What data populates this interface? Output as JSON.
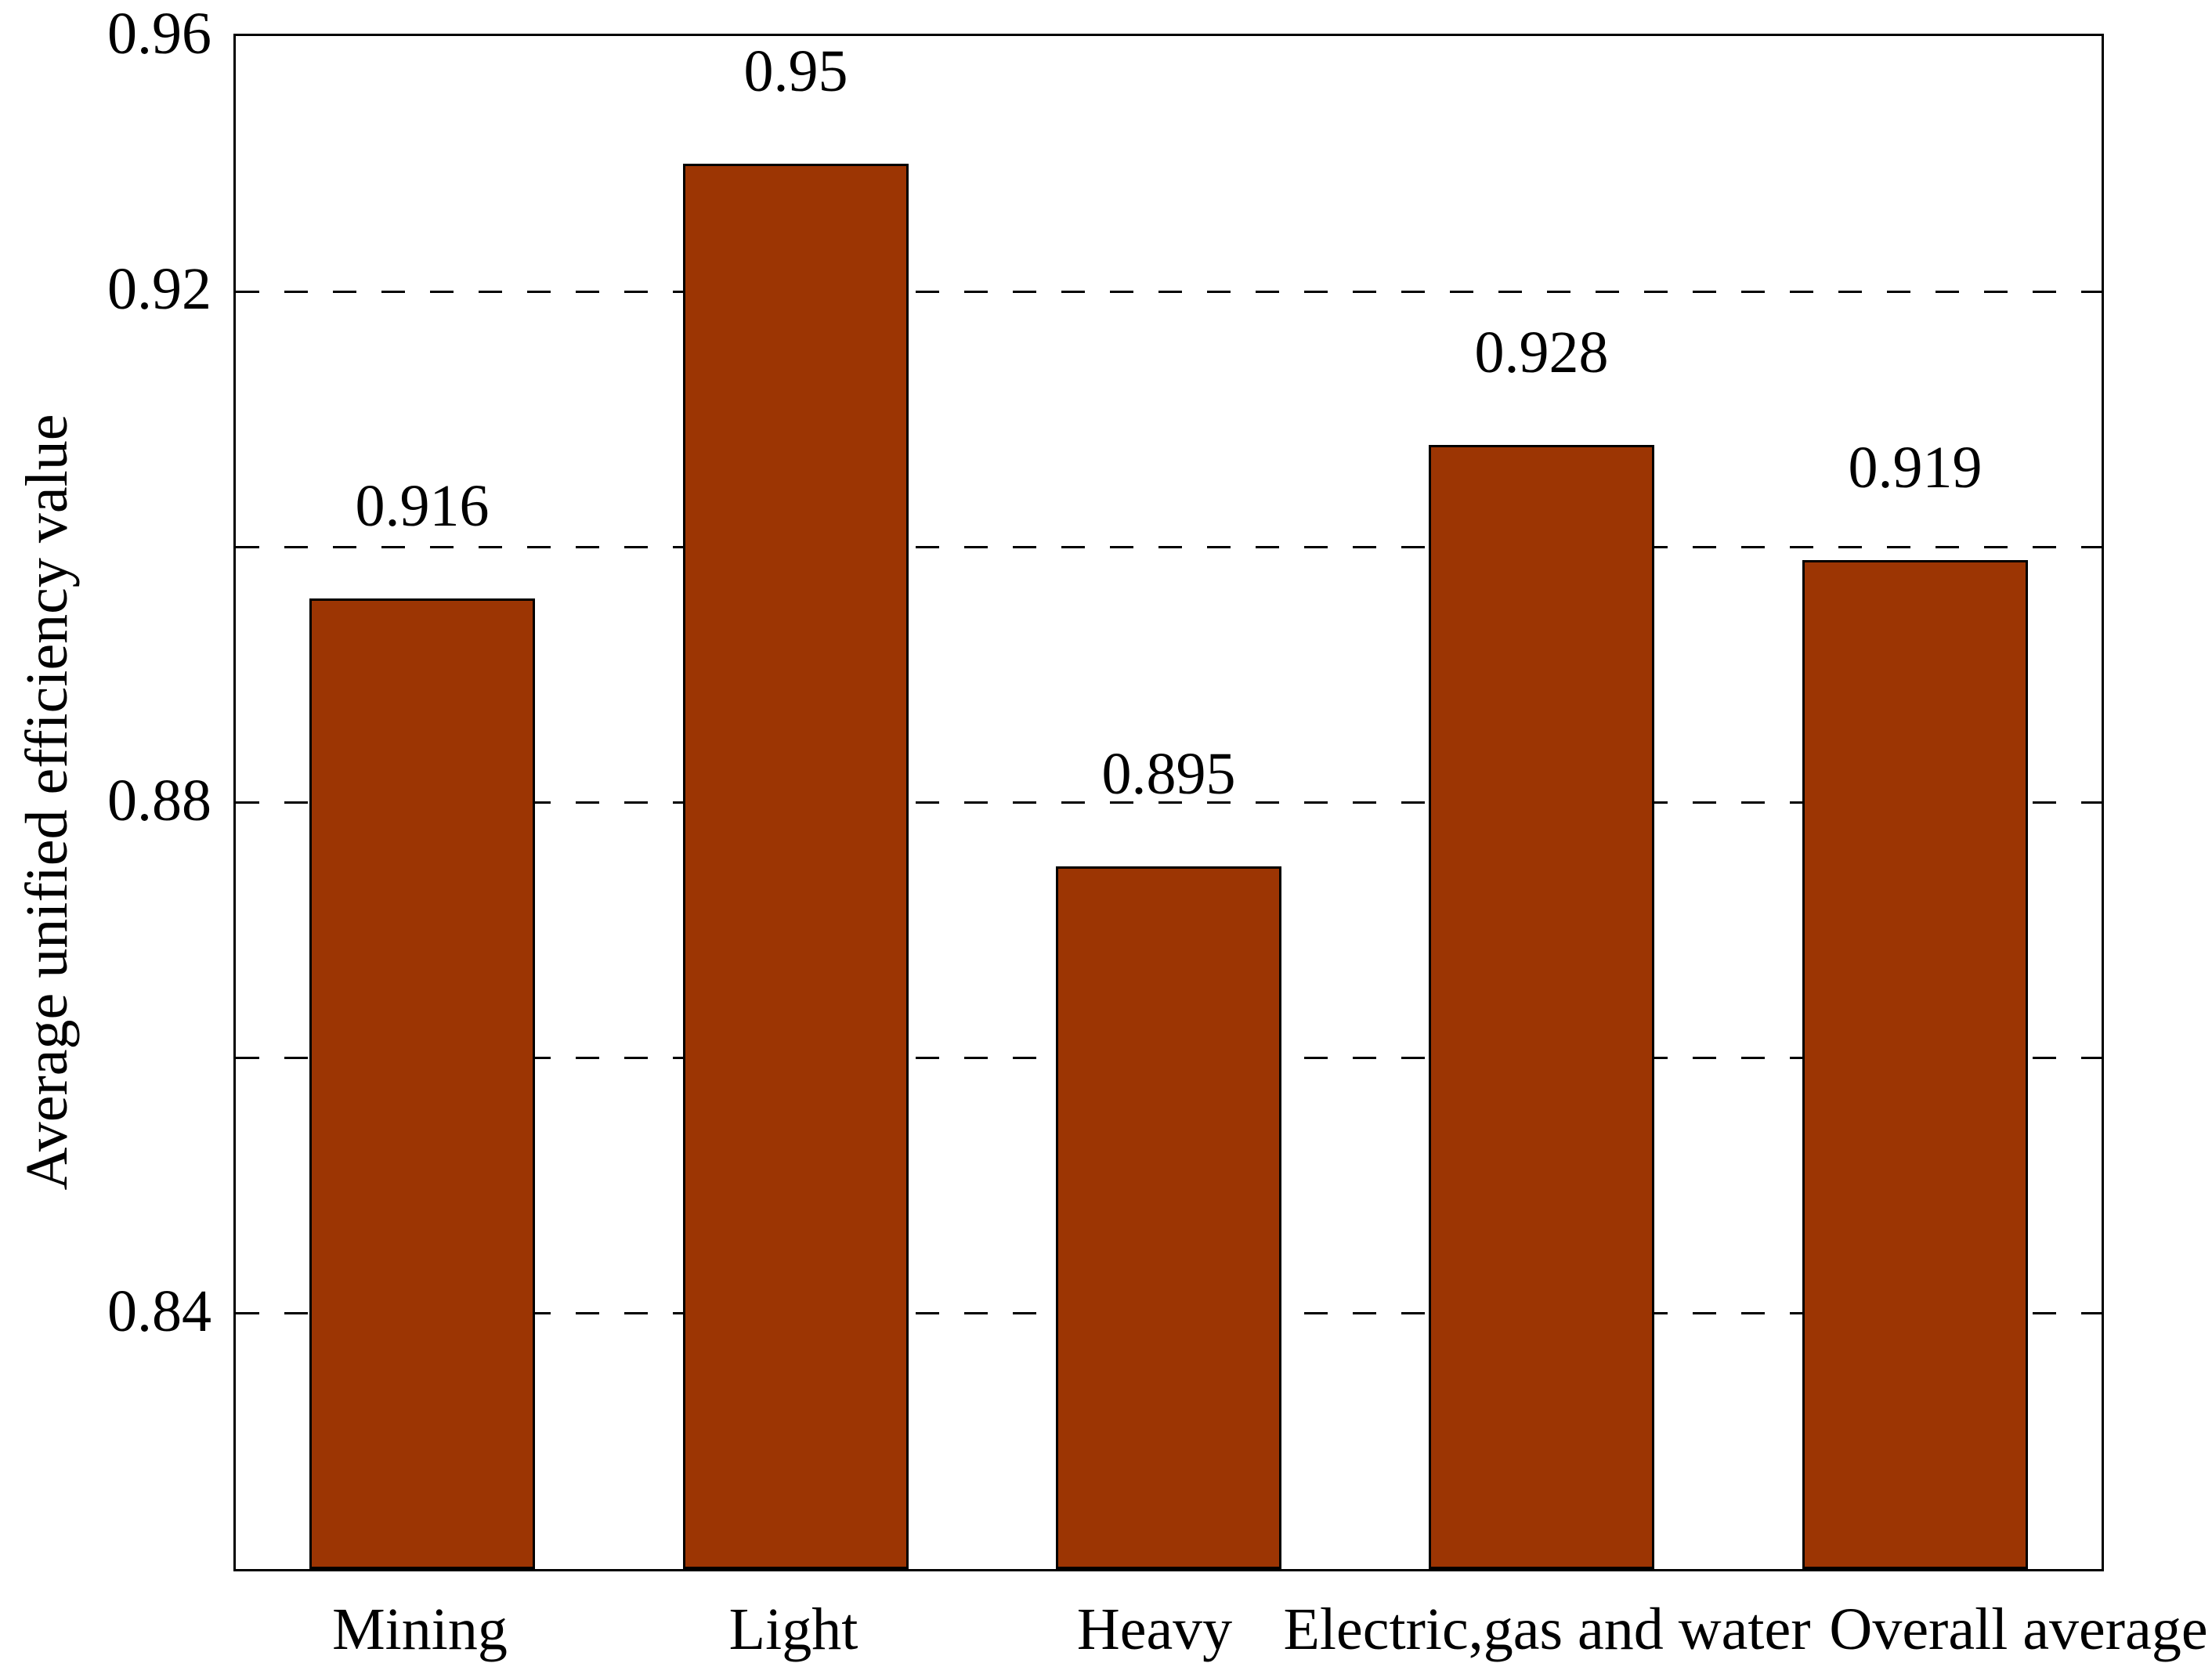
{
  "chart_data": {
    "type": "bar",
    "title": "",
    "categories": [
      "Mining",
      "Light",
      "Heavy",
      "Electric,gas and water",
      "Overall average"
    ],
    "values": [
      0.916,
      0.95,
      0.895,
      0.928,
      0.919
    ],
    "bar_value_labels": [
      "0.916",
      "0.95",
      "0.895",
      "0.928",
      "0.919"
    ],
    "xlabel": "",
    "ylabel": "Average unified efficiency value",
    "ylim": [
      0.84,
      0.96
    ],
    "y_tick_labels": [
      "0.96",
      "0.92",
      "0.88",
      "0.84"
    ],
    "grid": "horizontal-dashed",
    "legend_position": "none",
    "bar_color": "#9C3503",
    "bar_border_color": "#000000",
    "background_color": "#FFFFFF",
    "text_color": "#000000"
  }
}
